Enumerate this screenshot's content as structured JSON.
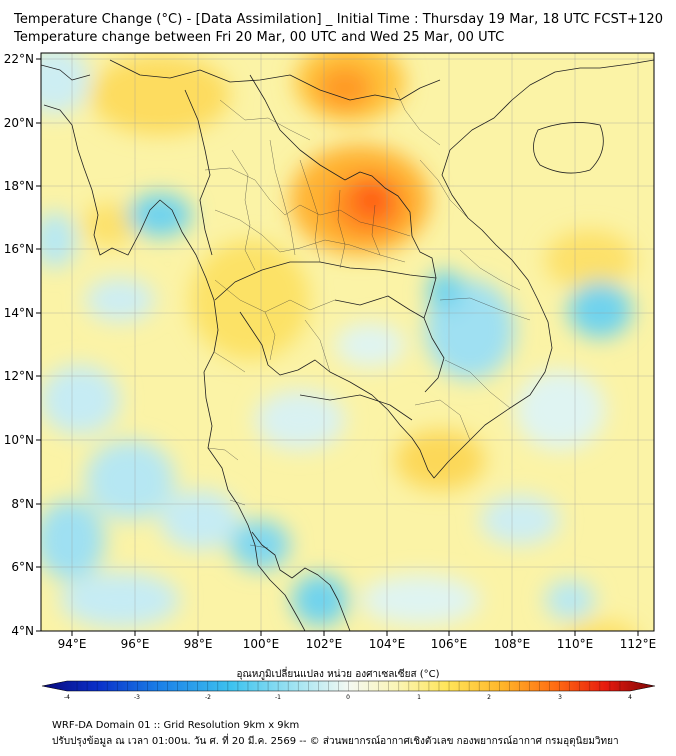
{
  "title_line1": "Temperature Change (°C) - [Data Assimilation] _ Initial Time : Thursday 19 Mar, 18 UTC FCST+120",
  "title_line2": "Temperature change between Fri 20 Mar, 00 UTC and Wed 25 Mar, 00 UTC",
  "lat_labels": [
    "22°N",
    "20°N",
    "18°N",
    "16°N",
    "14°N",
    "12°N",
    "10°N",
    "8°N",
    "6°N",
    "4°N"
  ],
  "lon_labels": [
    "94°E",
    "96°E",
    "98°E",
    "100°E",
    "102°E",
    "104°E",
    "106°E",
    "108°E",
    "110°E",
    "112°E"
  ],
  "colorbar": {
    "label": "อุณหภูมิเปลี่ยนแปลง หน่วย องศาเซลเซียส (°C)",
    "ticks": [
      "-4",
      "-3",
      "-2",
      "-1",
      "0",
      "1",
      "2",
      "3",
      "4"
    ],
    "min": -4,
    "max": 4,
    "colors": [
      "#08087a",
      "#0a2fc9",
      "#1a7fe8",
      "#3ec3ef",
      "#a8e6f2",
      "#f4f9f2",
      "#fbf5b5",
      "#ffe55a",
      "#ffb62a",
      "#ff6a12",
      "#e61a0e",
      "#7a0606"
    ]
  },
  "footer_line1": "WRF-DA Domain 01 :: Grid Resolution 9km x 9km",
  "footer_line2": "ปรับปรุงข้อมูล ณ เวลา 01:00น. วัน ศ. ที่ 20 มี.ค. 2569 -- © ส่วนพยากรณ์อากาศเชิงตัวเลข กองพยากรณ์อากาศ กรมอุตุนิยมวิทยา"
}
